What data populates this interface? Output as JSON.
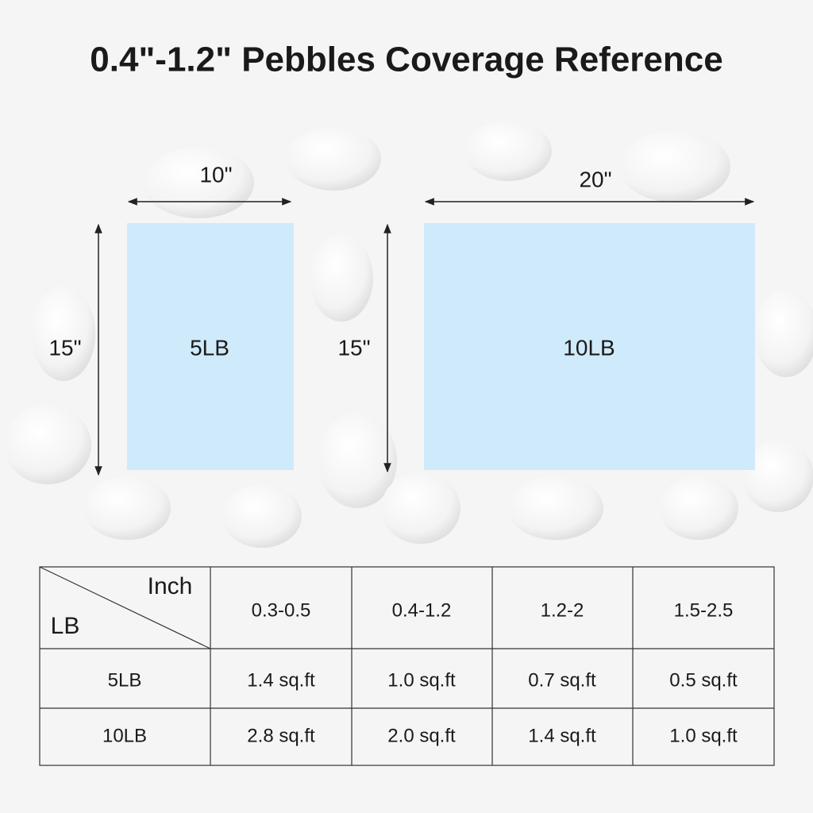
{
  "title": "0.4\"-1.2\" Pebbles Coverage Reference",
  "diagrams": [
    {
      "width_label": "10\"",
      "height_label": "15\"",
      "weight": "5LB"
    },
    {
      "width_label": "20\"",
      "height_label": "15\"",
      "weight": "10LB"
    }
  ],
  "table": {
    "corner_column": "Inch",
    "corner_row": "LB",
    "columns": [
      "0.3-0.5",
      "0.4-1.2",
      "1.2-2",
      "1.5-2.5"
    ],
    "rows": [
      [
        "5LB",
        "1.4 sq.ft",
        "1.0 sq.ft",
        "0.7 sq.ft",
        "0.5 sq.ft"
      ],
      [
        "10LB",
        "2.8 sq.ft",
        "2.0 sq.ft",
        "1.4 sq.ft",
        "1.0 sq.ft"
      ]
    ]
  }
}
